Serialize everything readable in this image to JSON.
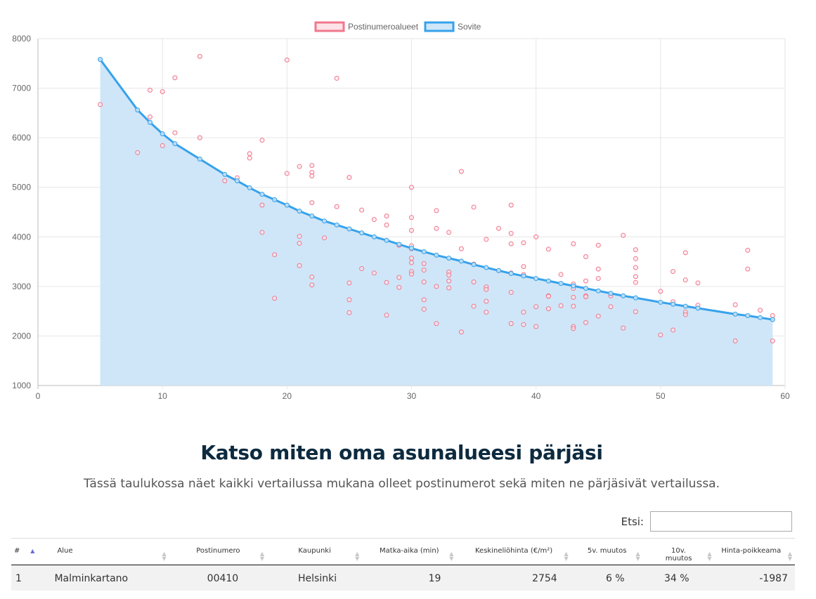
{
  "chart_data": {
    "type": "scatter",
    "legend": [
      "Postinumeroalueet",
      "Sovite"
    ],
    "legend_position": "top",
    "grid": true,
    "xlim": [
      0,
      60
    ],
    "ylim": [
      1000,
      8000
    ],
    "x_ticks": [
      "0",
      "10",
      "20",
      "30",
      "40",
      "50",
      "60"
    ],
    "y_ticks": [
      "1000",
      "2000",
      "3000",
      "4000",
      "5000",
      "6000",
      "7000",
      "8000"
    ],
    "colors": {
      "scatter": "#f0788e",
      "fit": "#36a2eb",
      "fill": "#cfe6f8"
    },
    "series": [
      {
        "name": "Postinumeroalueet",
        "type": "scatter",
        "points": [
          [
            5,
            6670
          ],
          [
            8,
            5700
          ],
          [
            9,
            6960
          ],
          [
            9,
            6420
          ],
          [
            10,
            6930
          ],
          [
            10,
            5840
          ],
          [
            11,
            7210
          ],
          [
            11,
            6100
          ],
          [
            13,
            7640
          ],
          [
            13,
            6000
          ],
          [
            15,
            5130
          ],
          [
            16,
            5190
          ],
          [
            17,
            5680
          ],
          [
            17,
            5590
          ],
          [
            18,
            5950
          ],
          [
            18,
            4640
          ],
          [
            18,
            4090
          ],
          [
            19,
            3640
          ],
          [
            19,
            2760
          ],
          [
            20,
            7570
          ],
          [
            20,
            5280
          ],
          [
            21,
            5420
          ],
          [
            21,
            4010
          ],
          [
            21,
            3870
          ],
          [
            21,
            3420
          ],
          [
            22,
            5440
          ],
          [
            22,
            5300
          ],
          [
            22,
            5230
          ],
          [
            22,
            4690
          ],
          [
            22,
            3190
          ],
          [
            22,
            3030
          ],
          [
            23,
            3980
          ],
          [
            24,
            7200
          ],
          [
            24,
            4610
          ],
          [
            25,
            5200
          ],
          [
            25,
            3070
          ],
          [
            25,
            2730
          ],
          [
            25,
            2470
          ],
          [
            26,
            4540
          ],
          [
            26,
            3360
          ],
          [
            27,
            4350
          ],
          [
            27,
            3270
          ],
          [
            28,
            4420
          ],
          [
            28,
            4240
          ],
          [
            28,
            3080
          ],
          [
            28,
            2420
          ],
          [
            29,
            3830
          ],
          [
            29,
            3180
          ],
          [
            29,
            2980
          ],
          [
            30,
            5000
          ],
          [
            30,
            4390
          ],
          [
            30,
            4130
          ],
          [
            30,
            3820
          ],
          [
            30,
            3760
          ],
          [
            30,
            3570
          ],
          [
            30,
            3480
          ],
          [
            30,
            3300
          ],
          [
            30,
            3250
          ],
          [
            31,
            3460
          ],
          [
            31,
            3330
          ],
          [
            31,
            3090
          ],
          [
            31,
            2730
          ],
          [
            31,
            2540
          ],
          [
            32,
            4530
          ],
          [
            32,
            4170
          ],
          [
            32,
            3000
          ],
          [
            32,
            2250
          ],
          [
            33,
            4090
          ],
          [
            33,
            3290
          ],
          [
            33,
            3230
          ],
          [
            33,
            3110
          ],
          [
            33,
            2970
          ],
          [
            34,
            5320
          ],
          [
            34,
            3760
          ],
          [
            34,
            2080
          ],
          [
            35,
            4600
          ],
          [
            35,
            3450
          ],
          [
            35,
            3090
          ],
          [
            35,
            2600
          ],
          [
            36,
            3950
          ],
          [
            36,
            2990
          ],
          [
            36,
            2940
          ],
          [
            36,
            2700
          ],
          [
            36,
            2480
          ],
          [
            37,
            4170
          ],
          [
            37,
            3320
          ],
          [
            38,
            4640
          ],
          [
            38,
            4070
          ],
          [
            38,
            3860
          ],
          [
            38,
            3270
          ],
          [
            38,
            2880
          ],
          [
            38,
            2250
          ],
          [
            39,
            3880
          ],
          [
            39,
            3400
          ],
          [
            39,
            3240
          ],
          [
            39,
            2480
          ],
          [
            39,
            2230
          ],
          [
            40,
            4000
          ],
          [
            40,
            2590
          ],
          [
            40,
            2190
          ],
          [
            41,
            3750
          ],
          [
            41,
            2810
          ],
          [
            41,
            2800
          ],
          [
            41,
            2550
          ],
          [
            42,
            3240
          ],
          [
            42,
            2610
          ],
          [
            43,
            3860
          ],
          [
            43,
            3050
          ],
          [
            43,
            2960
          ],
          [
            43,
            2780
          ],
          [
            43,
            2600
          ],
          [
            43,
            2190
          ],
          [
            43,
            2150
          ],
          [
            44,
            3600
          ],
          [
            44,
            3110
          ],
          [
            44,
            2810
          ],
          [
            44,
            2790
          ],
          [
            44,
            2270
          ],
          [
            45,
            3830
          ],
          [
            45,
            3350
          ],
          [
            45,
            3160
          ],
          [
            45,
            2400
          ],
          [
            46,
            2810
          ],
          [
            46,
            2590
          ],
          [
            47,
            4030
          ],
          [
            47,
            2160
          ],
          [
            48,
            3740
          ],
          [
            48,
            3560
          ],
          [
            48,
            3380
          ],
          [
            48,
            3200
          ],
          [
            48,
            3080
          ],
          [
            48,
            2490
          ],
          [
            50,
            2900
          ],
          [
            50,
            2020
          ],
          [
            51,
            3300
          ],
          [
            51,
            2690
          ],
          [
            51,
            2120
          ],
          [
            52,
            3680
          ],
          [
            52,
            3130
          ],
          [
            52,
            2480
          ],
          [
            52,
            2430
          ],
          [
            53,
            3070
          ],
          [
            53,
            2620
          ],
          [
            56,
            2630
          ],
          [
            56,
            1900
          ],
          [
            57,
            3730
          ],
          [
            57,
            3350
          ],
          [
            58,
            2520
          ],
          [
            59,
            2410
          ],
          [
            59,
            1900
          ]
        ]
      },
      {
        "name": "Sovite",
        "type": "line",
        "points": [
          [
            5,
            7580
          ],
          [
            8,
            6560
          ],
          [
            9,
            6310
          ],
          [
            10,
            6080
          ],
          [
            11,
            5880
          ],
          [
            13,
            5570
          ],
          [
            15,
            5260
          ],
          [
            16,
            5130
          ],
          [
            17,
            4990
          ],
          [
            18,
            4860
          ],
          [
            19,
            4750
          ],
          [
            20,
            4640
          ],
          [
            21,
            4520
          ],
          [
            22,
            4420
          ],
          [
            23,
            4320
          ],
          [
            24,
            4240
          ],
          [
            25,
            4160
          ],
          [
            26,
            4080
          ],
          [
            27,
            4000
          ],
          [
            28,
            3930
          ],
          [
            29,
            3850
          ],
          [
            30,
            3770
          ],
          [
            31,
            3700
          ],
          [
            32,
            3630
          ],
          [
            33,
            3570
          ],
          [
            34,
            3510
          ],
          [
            35,
            3440
          ],
          [
            36,
            3380
          ],
          [
            37,
            3320
          ],
          [
            38,
            3260
          ],
          [
            39,
            3210
          ],
          [
            40,
            3160
          ],
          [
            41,
            3110
          ],
          [
            42,
            3060
          ],
          [
            43,
            3010
          ],
          [
            44,
            2960
          ],
          [
            45,
            2910
          ],
          [
            46,
            2860
          ],
          [
            47,
            2810
          ],
          [
            48,
            2770
          ],
          [
            50,
            2680
          ],
          [
            51,
            2640
          ],
          [
            52,
            2600
          ],
          [
            53,
            2560
          ],
          [
            56,
            2440
          ],
          [
            57,
            2410
          ],
          [
            58,
            2370
          ],
          [
            59,
            2330
          ]
        ]
      }
    ]
  },
  "section": {
    "heading": "Katso miten oma asunalueesi pärjäsi",
    "subheading": "Tässä taulukossa näet kaikki vertailussa mukana olleet postinumerot sekä miten ne pärjäsivät vertailussa."
  },
  "search": {
    "label": "Etsi:",
    "value": ""
  },
  "table": {
    "columns": [
      "#",
      "Alue",
      "Postinumero",
      "Kaupunki",
      "Matka-aika (min)",
      "Keskineliöhinta (€/m²)",
      "5v. muutos",
      "10v. muutos",
      "Hinta-poikkeama"
    ],
    "rows": [
      [
        "1",
        "Malminkartano",
        "00410",
        "Helsinki",
        "19",
        "2754",
        "6 %",
        "34 %",
        "-1987"
      ]
    ]
  }
}
